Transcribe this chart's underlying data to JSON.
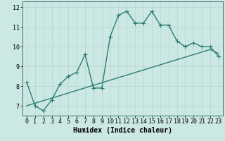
{
  "xlabel": "Humidex (Indice chaleur)",
  "bg_color": "#cce8e4",
  "line_color": "#2d7d6e",
  "grid_color": "#b8d8d4",
  "x_values": [
    0,
    1,
    2,
    3,
    4,
    5,
    6,
    7,
    8,
    9,
    10,
    11,
    12,
    13,
    14,
    15,
    16,
    17,
    18,
    19,
    20,
    21,
    22,
    23
  ],
  "y_curve": [
    8.2,
    7.0,
    6.75,
    7.3,
    8.1,
    8.5,
    8.7,
    9.6,
    7.9,
    7.9,
    10.5,
    11.6,
    11.8,
    11.2,
    11.2,
    11.8,
    11.1,
    11.1,
    10.3,
    10.0,
    10.2,
    10.0,
    10.0,
    9.5
  ],
  "y_linear": [
    7.0,
    7.13,
    7.26,
    7.39,
    7.52,
    7.65,
    7.78,
    7.91,
    8.04,
    8.17,
    8.3,
    8.43,
    8.56,
    8.69,
    8.82,
    8.95,
    9.08,
    9.21,
    9.34,
    9.47,
    9.6,
    9.73,
    9.86,
    9.65
  ],
  "ylim": [
    6.5,
    12.3
  ],
  "yticks": [
    7,
    8,
    9,
    10,
    11,
    12
  ],
  "xticks": [
    0,
    1,
    2,
    3,
    4,
    5,
    6,
    7,
    8,
    9,
    10,
    11,
    12,
    13,
    14,
    15,
    16,
    17,
    18,
    19,
    20,
    21,
    22,
    23
  ],
  "marker_size": 2.5,
  "linewidth": 1.0,
  "xlabel_fontsize": 7,
  "tick_fontsize": 6
}
